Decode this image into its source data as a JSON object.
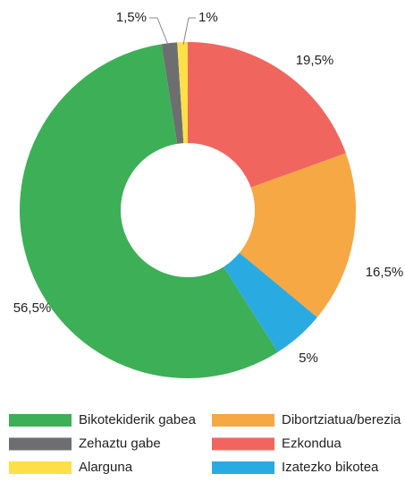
{
  "chart_data": {
    "type": "pie",
    "categories": [
      "Ezkondua",
      "Dibortziatua/berezia",
      "Izatezko bikotea",
      "Bikotekiderik gabea",
      "Zehaztu gabe",
      "Alarguna"
    ],
    "values": [
      19.5,
      16.5,
      5,
      56.5,
      1.5,
      1
    ],
    "value_labels": [
      "19,5%",
      "16,5%",
      "5%",
      "56,5%",
      "1,5%",
      "1%"
    ],
    "colors": [
      "#f0665f",
      "#f5a843",
      "#29abe2",
      "#3daf57",
      "#6d6e70",
      "#fde047"
    ]
  }
}
